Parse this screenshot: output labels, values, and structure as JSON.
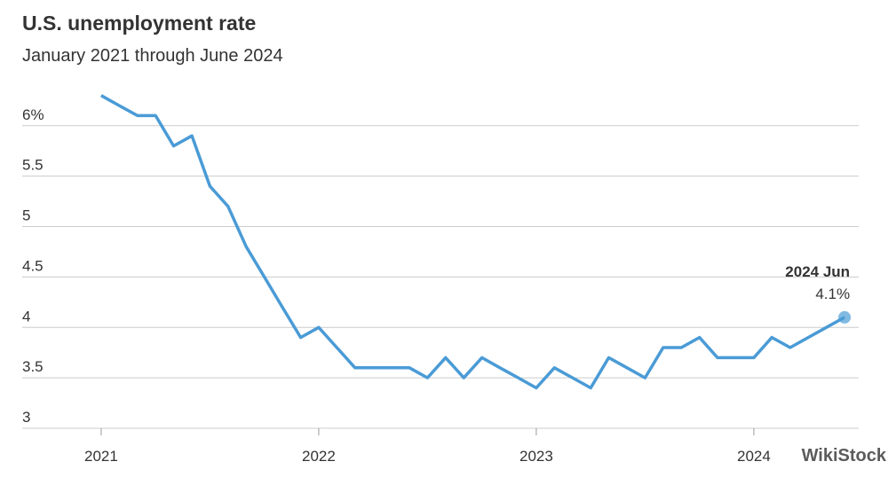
{
  "chart_data": {
    "type": "line",
    "title": "U.S. unemployment rate",
    "subtitle": "January 2021 through June 2024",
    "x": [
      2021.0,
      2021.083,
      2021.167,
      2021.25,
      2021.333,
      2021.417,
      2021.5,
      2021.583,
      2021.667,
      2021.75,
      2021.833,
      2021.917,
      2022.0,
      2022.083,
      2022.167,
      2022.25,
      2022.333,
      2022.417,
      2022.5,
      2022.583,
      2022.667,
      2022.75,
      2022.833,
      2022.917,
      2023.0,
      2023.083,
      2023.167,
      2023.25,
      2023.333,
      2023.417,
      2023.5,
      2023.583,
      2023.667,
      2023.75,
      2023.833,
      2023.917,
      2024.0,
      2024.083,
      2024.167,
      2024.25,
      2024.333,
      2024.417
    ],
    "series": [
      {
        "name": "Unemployment rate",
        "color": "#4a9bd6",
        "values": [
          6.3,
          6.2,
          6.1,
          6.1,
          5.8,
          5.9,
          5.4,
          5.2,
          4.8,
          4.5,
          4.2,
          3.9,
          4.0,
          3.8,
          3.6,
          3.6,
          3.6,
          3.6,
          3.5,
          3.7,
          3.5,
          3.7,
          3.6,
          3.5,
          3.4,
          3.6,
          3.5,
          3.4,
          3.7,
          3.6,
          3.5,
          3.8,
          3.8,
          3.9,
          3.7,
          3.7,
          3.7,
          3.9,
          3.8,
          3.9,
          4.0,
          4.1
        ],
        "value_labels": [
          null,
          null,
          null,
          null,
          null,
          null,
          null,
          null,
          null,
          null,
          null,
          null,
          null,
          null,
          null,
          null,
          null,
          null,
          null,
          null,
          null,
          null,
          null,
          null,
          null,
          null,
          null,
          null,
          null,
          null,
          null,
          null,
          null,
          null,
          null,
          null,
          null,
          null,
          null,
          null,
          null,
          "4.1%"
        ]
      }
    ],
    "highlight_label": "2024 Jun",
    "xlim": [
      2020.637,
      2024.482
    ],
    "xticks": [
      2021,
      2022,
      2023,
      2024
    ],
    "ylim": [
      3,
      6.35
    ],
    "yticks": [
      3,
      3.5,
      4,
      4.5,
      5,
      5.5,
      {
        "value": 6,
        "label": "6%"
      }
    ],
    "grid": true,
    "watermark": "WikiStock"
  }
}
